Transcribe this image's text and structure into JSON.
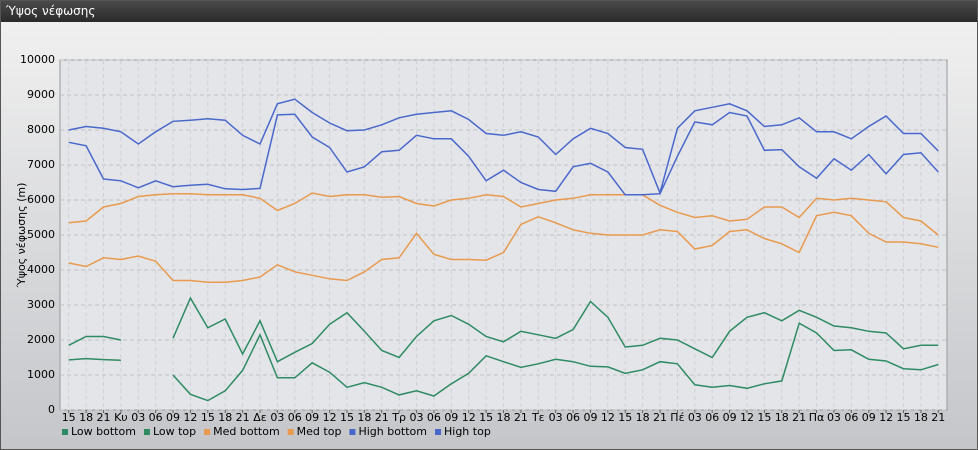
{
  "chart_data": {
    "type": "line",
    "title": "Ύψος νέφωσης",
    "y_label": "Ύψος νέφωσης (m)",
    "categories": [
      "15",
      "18",
      "21",
      "Κυ",
      "03",
      "06",
      "09",
      "12",
      "15",
      "18",
      "21",
      "Δε",
      "03",
      "06",
      "09",
      "12",
      "15",
      "18",
      "21",
      "Τρ",
      "03",
      "06",
      "09",
      "12",
      "15",
      "18",
      "21",
      "Τε",
      "03",
      "06",
      "09",
      "12",
      "15",
      "18",
      "21",
      "Πέ",
      "03",
      "06",
      "09",
      "12",
      "15",
      "18",
      "21",
      "Πα",
      "03",
      "06",
      "09",
      "12",
      "15",
      "18",
      "21"
    ],
    "ylim": [
      0,
      10000
    ],
    "yticks": [
      0,
      1000,
      2000,
      3000,
      4000,
      5000,
      6000,
      7000,
      8000,
      9000,
      10000
    ],
    "grid": true,
    "legend": "bottom",
    "series": [
      {
        "name": "Low bottom",
        "color": "#2e8b63",
        "values": [
          1430,
          1470,
          1440,
          1420,
          null,
          null,
          1000,
          450,
          270,
          550,
          1130,
          2150,
          920,
          920,
          1350,
          1080,
          650,
          780,
          650,
          430,
          550,
          400,
          750,
          1050,
          1550,
          1380,
          1220,
          1320,
          1450,
          1380,
          1250,
          1230,
          1050,
          1150,
          1380,
          1320,
          720,
          650,
          700,
          620,
          750,
          830,
          2480,
          2200,
          1700,
          1720,
          1450,
          1400,
          1180,
          1150,
          1300
        ]
      },
      {
        "name": "Low top",
        "color": "#2e8b63",
        "values": [
          1850,
          2100,
          2100,
          2000,
          null,
          null,
          2050,
          3200,
          2350,
          2600,
          1600,
          2550,
          1380,
          1650,
          1900,
          2450,
          2780,
          2250,
          1700,
          1500,
          2100,
          2550,
          2700,
          2450,
          2100,
          1950,
          2250,
          2150,
          2050,
          2300,
          3100,
          2650,
          1800,
          1850,
          2050,
          2000,
          1750,
          1500,
          2250,
          2650,
          2780,
          2550,
          2850,
          2650,
          2400,
          2350,
          2250,
          2200,
          1750,
          1850,
          1850
        ]
      },
      {
        "name": "Med bottom",
        "color": "#e89a4e",
        "values": [
          4200,
          4100,
          4350,
          4300,
          4400,
          4250,
          3700,
          3700,
          3650,
          3650,
          3700,
          3800,
          4150,
          3950,
          3850,
          3750,
          3700,
          3950,
          4300,
          4350,
          5050,
          4450,
          4300,
          4300,
          4280,
          4500,
          5300,
          5520,
          5350,
          5150,
          5050,
          5000,
          5000,
          5000,
          5150,
          5100,
          4600,
          4700,
          5100,
          5150,
          4900,
          4750,
          4500,
          5550,
          5650,
          5550,
          5050,
          4800,
          4800,
          4750,
          4650
        ]
      },
      {
        "name": "Med top",
        "color": "#e89a4e",
        "values": [
          5350,
          5400,
          5800,
          5900,
          6100,
          6150,
          6180,
          6180,
          6150,
          6150,
          6150,
          6050,
          5700,
          5900,
          6200,
          6100,
          6150,
          6150,
          6080,
          6100,
          5900,
          5830,
          6000,
          6050,
          6150,
          6100,
          5800,
          5900,
          6000,
          6050,
          6150,
          6150,
          6150,
          6150,
          5850,
          5650,
          5500,
          5550,
          5400,
          5450,
          5800,
          5800,
          5500,
          6050,
          6000,
          6050,
          6000,
          5950,
          5500,
          5400,
          5000
        ]
      },
      {
        "name": "High bottom",
        "color": "#4a68cc",
        "values": [
          7650,
          7550,
          6600,
          6550,
          6350,
          6550,
          6380,
          6420,
          6450,
          6320,
          6300,
          6330,
          8430,
          8450,
          7800,
          7500,
          6800,
          6950,
          7380,
          7420,
          7850,
          7750,
          7750,
          7250,
          6550,
          6850,
          6500,
          6300,
          6250,
          6950,
          7050,
          6800,
          6150,
          6150,
          6180,
          7250,
          8230,
          8150,
          8500,
          8400,
          7420,
          7440,
          6950,
          6620,
          7180,
          6850,
          7300,
          6750,
          7300,
          7350,
          6800
        ]
      },
      {
        "name": "High top",
        "color": "#4a68cc",
        "values": [
          8000,
          8100,
          8050,
          7950,
          7600,
          7950,
          8250,
          8280,
          8320,
          8280,
          7850,
          7600,
          8750,
          8880,
          8500,
          8200,
          7980,
          8000,
          8150,
          8350,
          8450,
          8500,
          8550,
          8300,
          7900,
          7850,
          7950,
          7800,
          7300,
          7750,
          8050,
          7900,
          7500,
          7450,
          6200,
          8050,
          8550,
          8650,
          8750,
          8550,
          8100,
          8150,
          8350,
          7950,
          7950,
          7750,
          8100,
          8400,
          7900,
          7900,
          7400
        ]
      }
    ]
  }
}
